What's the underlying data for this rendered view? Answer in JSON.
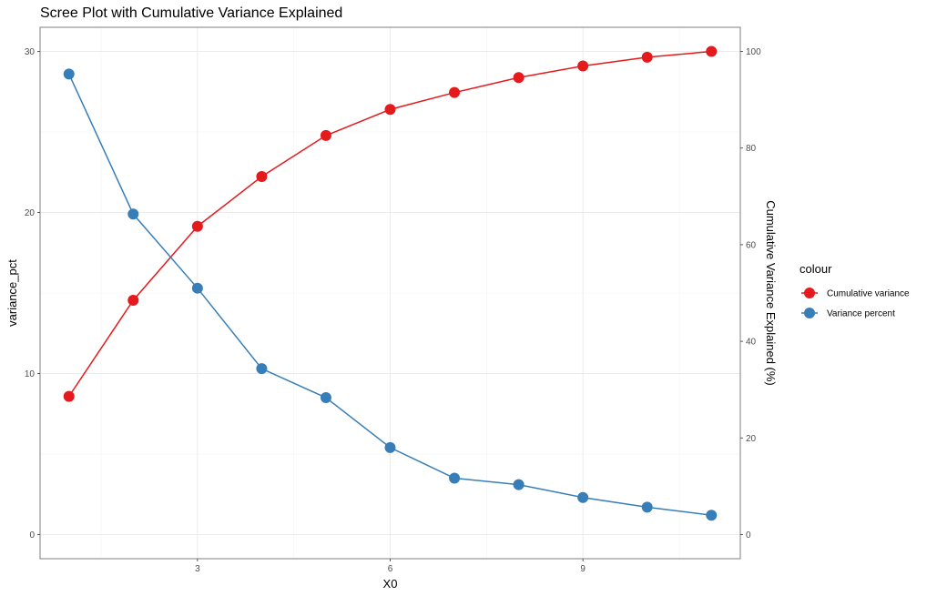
{
  "chart_data": {
    "type": "line",
    "title": "Scree Plot with Cumulative Variance Explained",
    "xlabel": "X0",
    "ylabel": "variance_pct",
    "y2label": "Cumulative Variance Explained (%)",
    "x": [
      1,
      2,
      3,
      4,
      5,
      6,
      7,
      8,
      9,
      10,
      11
    ],
    "xlim": [
      0.55,
      11.45
    ],
    "ylim": [
      -1.5,
      31.5
    ],
    "y2lim": [
      -5,
      105
    ],
    "x_ticks": [
      3,
      6,
      9
    ],
    "y_ticks": [
      0,
      10,
      20,
      30
    ],
    "y2_ticks": [
      0,
      20,
      40,
      60,
      80,
      100
    ],
    "grid": true,
    "legend_title": "colour",
    "legend_position": "right",
    "series": [
      {
        "name": "Cumulative variance",
        "axis": "secondary",
        "color": "#E41A1C",
        "values": [
          28.6,
          48.5,
          63.8,
          74.1,
          82.6,
          88.0,
          91.5,
          94.6,
          97.0,
          98.8,
          100.0
        ]
      },
      {
        "name": "Variance percent",
        "axis": "primary",
        "color": "#377EB8",
        "values": [
          28.6,
          19.9,
          15.3,
          10.3,
          8.5,
          5.4,
          3.5,
          3.1,
          2.3,
          1.7,
          1.2
        ]
      }
    ]
  }
}
